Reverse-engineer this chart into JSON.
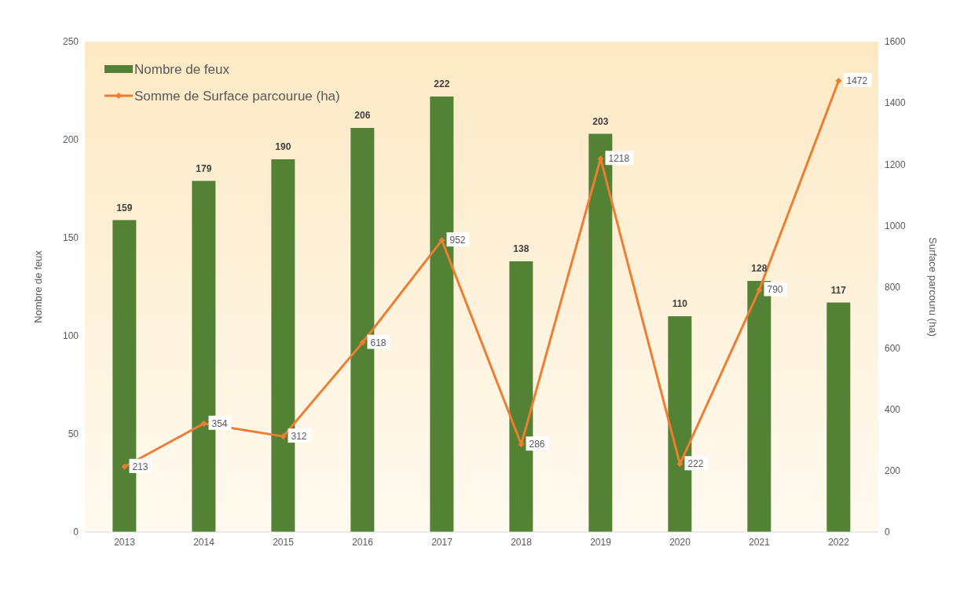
{
  "chart_data": {
    "type": "bar",
    "categories": [
      "2013",
      "2014",
      "2015",
      "2016",
      "2017",
      "2018",
      "2019",
      "2020",
      "2021",
      "2022"
    ],
    "series": [
      {
        "name": "Nombre de feux",
        "color": "#548235",
        "values": [
          159,
          179,
          190,
          206,
          222,
          138,
          203,
          110,
          128,
          117
        ]
      },
      {
        "name": "Somme de Surface parcourue (ha)",
        "type": "line",
        "axis": "y2",
        "color": "#ed7d31",
        "values": [
          213,
          354,
          312,
          618,
          952,
          286,
          1218,
          222,
          790,
          1472
        ]
      }
    ],
    "ylabel": "Nombre de feux",
    "y2label": "Surface parcouru (ha)",
    "ylim": [
      0,
      250
    ],
    "yticks": [
      0,
      50,
      100,
      150,
      200,
      250
    ],
    "y2lim": [
      0,
      1600
    ],
    "y2ticks": [
      0,
      200,
      400,
      600,
      800,
      1000,
      1200,
      1400,
      1600
    ],
    "data_labels": true,
    "legend": "top left",
    "grid": false,
    "marker": "diamond",
    "line_style": "solid"
  }
}
